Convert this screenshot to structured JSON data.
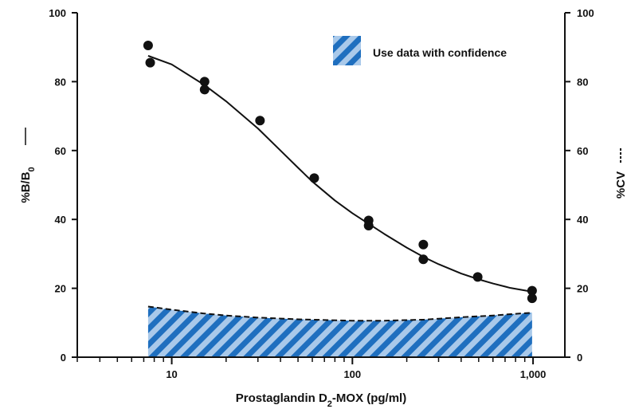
{
  "chart_data": {
    "type": "scatter",
    "xlabel": {
      "prefix": "Prostaglandin D",
      "sub": "2",
      "suffix": "-MOX (pg/ml)"
    },
    "ylabel_left": {
      "prefix": "%B/B",
      "sub": "0"
    },
    "ylabel_right": "%CV",
    "x_scale": "log",
    "xlim": [
      3,
      1500
    ],
    "ylim": [
      0,
      100
    ],
    "x_major_ticks": [
      10,
      100,
      1000
    ],
    "x_tick_labels": [
      "10",
      "100",
      "1,000"
    ],
    "y_ticks": [
      0,
      20,
      40,
      60,
      80,
      100
    ],
    "y_tick_labels": [
      "0",
      "20",
      "40",
      "60",
      "80",
      "100"
    ],
    "grid": false,
    "legend_position": "top-right",
    "legend_label": "Use data with confidence",
    "colors": {
      "hatch_blue": "#1f6fbf",
      "hatch_light": "#a9c9ea",
      "line": "#111111",
      "point": "#111111"
    },
    "series": [
      {
        "marker": "point",
        "points": [
          [
            7.4,
            90.5
          ],
          [
            7.6,
            85.5
          ],
          [
            15.2,
            80.0
          ],
          [
            15.2,
            77.7
          ],
          [
            30.8,
            68.7
          ],
          [
            61.5,
            52.0
          ],
          [
            123,
            39.7
          ],
          [
            123,
            38.2
          ],
          [
            247,
            32.7
          ],
          [
            247,
            28.4
          ],
          [
            494,
            23.3
          ],
          [
            988,
            19.3
          ],
          [
            988,
            17.1
          ]
        ]
      },
      {
        "marker": "line",
        "points": [
          [
            7.4,
            87.5
          ],
          [
            10,
            85.0
          ],
          [
            15,
            79.2
          ],
          [
            20,
            74.3
          ],
          [
            30,
            66.4
          ],
          [
            40,
            60.0
          ],
          [
            50,
            55.0
          ],
          [
            60,
            51.0
          ],
          [
            80,
            45.5
          ],
          [
            100,
            41.8
          ],
          [
            125,
            38.5
          ],
          [
            150,
            35.8
          ],
          [
            200,
            31.8
          ],
          [
            250,
            29.0
          ],
          [
            300,
            27.0
          ],
          [
            400,
            24.3
          ],
          [
            500,
            22.6
          ],
          [
            600,
            21.4
          ],
          [
            750,
            20.1
          ],
          [
            988,
            19.0
          ]
        ]
      },
      {
        "marker": "dashed-area",
        "points": [
          [
            7.4,
            14.7
          ],
          [
            10,
            13.8
          ],
          [
            15,
            12.7
          ],
          [
            20,
            12.1
          ],
          [
            30,
            11.5
          ],
          [
            50,
            11.0
          ],
          [
            70,
            10.8
          ],
          [
            100,
            10.6
          ],
          [
            150,
            10.6
          ],
          [
            250,
            10.9
          ],
          [
            400,
            11.6
          ],
          [
            600,
            12.1
          ],
          [
            800,
            12.6
          ],
          [
            988,
            12.9
          ]
        ]
      }
    ]
  }
}
